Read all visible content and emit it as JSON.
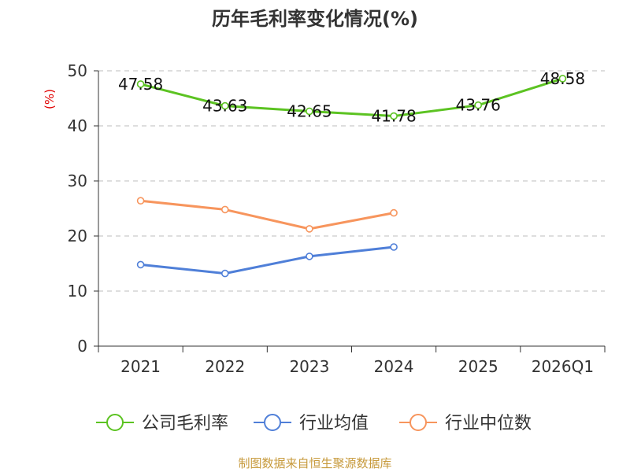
{
  "chart_data": {
    "type": "line",
    "title": "历年毛利率变化情况(%)",
    "ylabel": "(%)",
    "xlabel": "",
    "categories": [
      "2021",
      "2022",
      "2023",
      "2024",
      "2025",
      "2026Q1"
    ],
    "ylim": [
      0,
      50
    ],
    "yticks": [
      0,
      10,
      20,
      30,
      40,
      50
    ],
    "grid": true,
    "legend_position": "bottom",
    "series": [
      {
        "name": "公司毛利率",
        "color": "#5cc322",
        "values": [
          47.58,
          43.63,
          42.65,
          41.78,
          43.76,
          48.58
        ],
        "labels": [
          "47.58",
          "43.63",
          "42.65",
          "41.78",
          "43.76",
          "48.58"
        ]
      },
      {
        "name": "行业均值",
        "color": "#4f7fd8",
        "values": [
          14.8,
          13.2,
          16.3,
          18.0,
          null,
          null
        ]
      },
      {
        "name": "行业中位数",
        "color": "#f7955d",
        "values": [
          26.4,
          24.8,
          21.3,
          24.2,
          null,
          null
        ]
      }
    ],
    "source": "制图数据来自恒生聚源数据库"
  }
}
